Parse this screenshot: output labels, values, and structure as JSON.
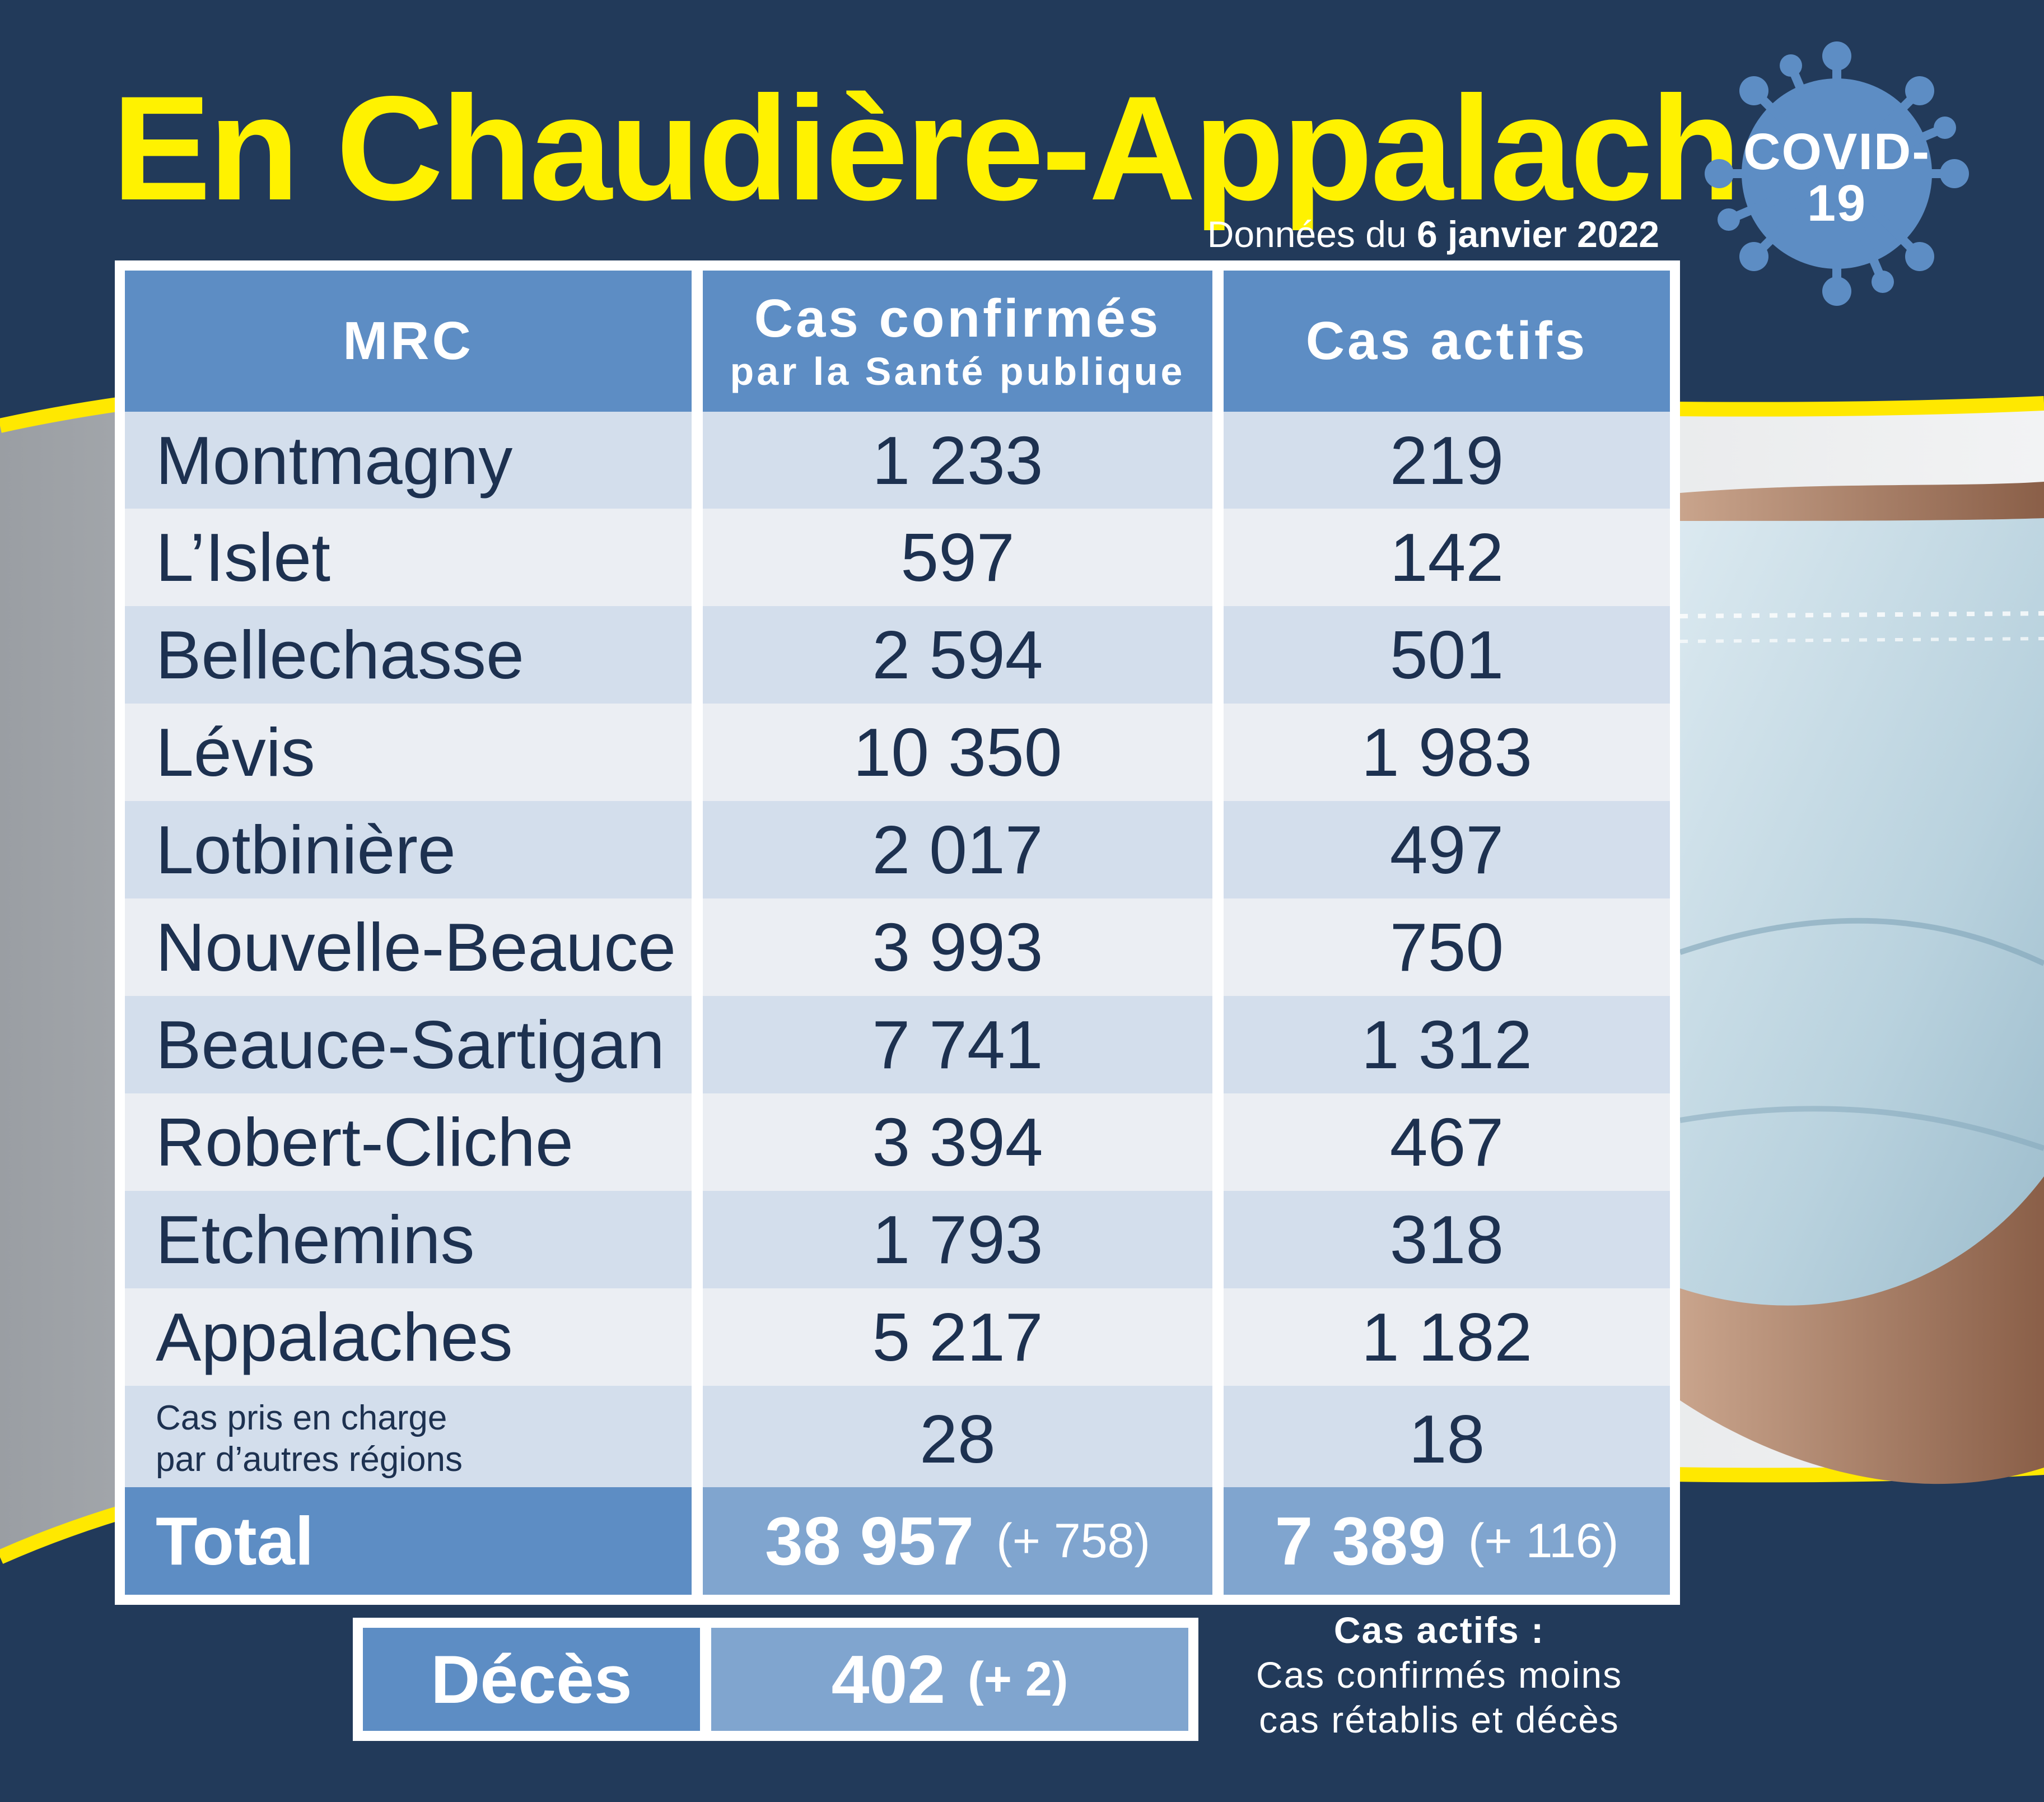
{
  "title": "En Chaudière-Appalaches",
  "subtitle": {
    "prefix": "Données du",
    "date": "6 janvier 2022"
  },
  "badge": {
    "line1": "COVID-",
    "line2": "19"
  },
  "table": {
    "headers": {
      "mrc": "MRC",
      "confirmed": "Cas confirmés",
      "confirmed_sub": "par la Santé publique",
      "active": "Cas actifs"
    },
    "rows": [
      {
        "name": "Montmagny",
        "confirmed": "1 233",
        "active": "219"
      },
      {
        "name": "L’Islet",
        "confirmed": "597",
        "active": "142"
      },
      {
        "name": "Bellechasse",
        "confirmed": "2 594",
        "active": "501"
      },
      {
        "name": "Lévis",
        "confirmed": "10 350",
        "active": "1 983"
      },
      {
        "name": "Lotbinière",
        "confirmed": "2 017",
        "active": "497"
      },
      {
        "name": "Nouvelle-Beauce",
        "confirmed": "3 993",
        "active": "750"
      },
      {
        "name": "Beauce-Sartigan",
        "confirmed": "7 741",
        "active": "1 312"
      },
      {
        "name": "Robert-Cliche",
        "confirmed": "3 394",
        "active": "467"
      },
      {
        "name": "Etchemins",
        "confirmed": "1 793",
        "active": "318"
      },
      {
        "name": "Appalaches",
        "confirmed": "5 217",
        "active": "1 182"
      }
    ],
    "other": {
      "line1": "Cas pris en charge",
      "line2": "par d’autres régions",
      "confirmed": "28",
      "active": "18"
    },
    "total": {
      "label": "Total",
      "confirmed": "38 957",
      "confirmed_delta": "(+ 758)",
      "active": "7 389",
      "active_delta": "(+ 116)"
    }
  },
  "deaths": {
    "label": "Décès",
    "value": "402",
    "delta": "(+ 2)"
  },
  "note": {
    "title": "Cas actifs :",
    "line1": "Cas confirmés moins",
    "line2": "cas rétablis et décès"
  },
  "colors": {
    "background": "#223a5a",
    "title": "#fff200",
    "header_blue": "#5d8dc4",
    "total_blue": "#80a5cf",
    "row_light": "#d3deec",
    "row_pale": "#ebeef3",
    "text": "#1d3150",
    "mask": "#c8dde8",
    "accent_yellow": "#ffe800"
  }
}
